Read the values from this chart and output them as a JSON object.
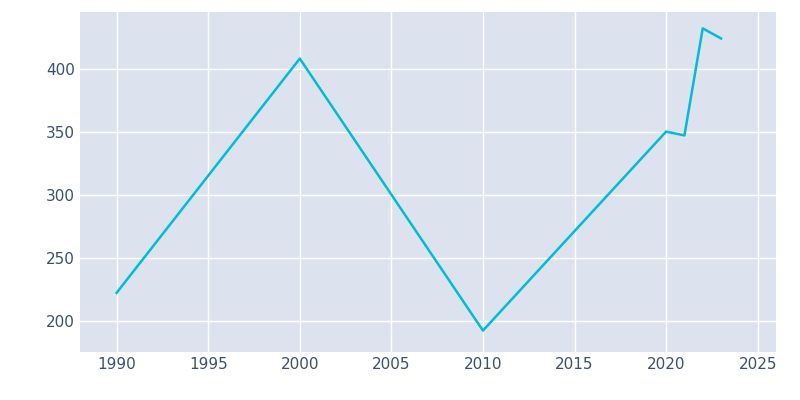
{
  "years": [
    1990,
    2000,
    2010,
    2020,
    2021,
    2022,
    2023
  ],
  "population": [
    222,
    408,
    192,
    350,
    347,
    432,
    424
  ],
  "line_color": "#00bcd4",
  "bg_color": "#dde3ee",
  "fig_bg_color": "#ffffff",
  "grid_color": "#ffffff",
  "tick_color": "#3d4f6e",
  "xlim": [
    1988,
    2026
  ],
  "ylim": [
    175,
    445
  ],
  "xticks": [
    1990,
    1995,
    2000,
    2005,
    2010,
    2015,
    2020,
    2025
  ],
  "yticks": [
    200,
    250,
    300,
    350,
    400
  ],
  "linewidth": 1.8,
  "tick_fontsize": 11
}
